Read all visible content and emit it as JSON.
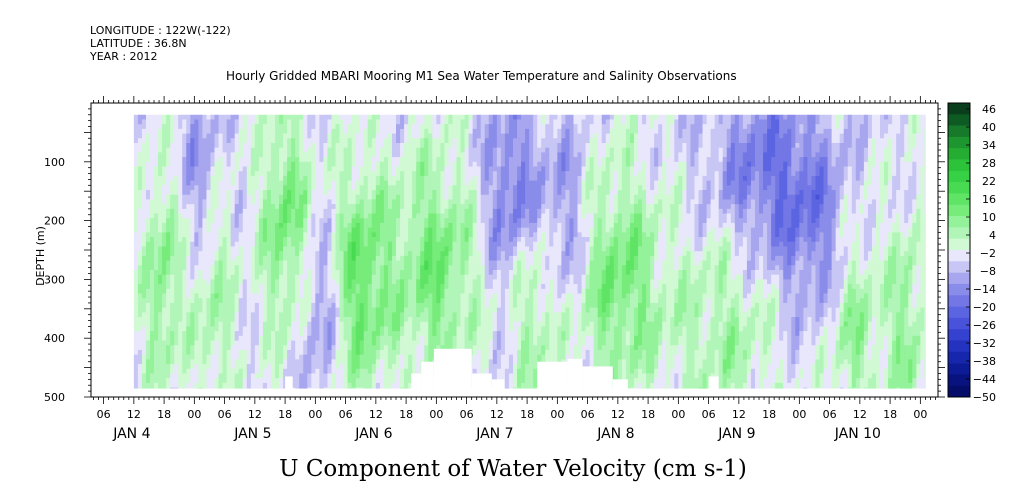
{
  "header": {
    "longitude": "LONGITUDE : 122W(-122)",
    "latitude": "LATITUDE : 36.8N",
    "year": "YEAR : 2012",
    "title": "Hourly Gridded MBARI Mooring M1 Sea Water Temperature and Salinity Observations"
  },
  "chart_data": {
    "type": "heatmap",
    "title": "Hourly Gridded MBARI Mooring M1 Sea Water Temperature and Salinity Observations",
    "xlabel": "U Component of Water Velocity (cm s-1)",
    "ylabel": "DEPTH (m)",
    "x_time_ticks": [
      "06",
      "12",
      "18",
      "00",
      "06",
      "12",
      "18",
      "00",
      "06",
      "12",
      "18",
      "00",
      "06",
      "12",
      "18",
      "00",
      "06",
      "12",
      "18",
      "00",
      "06",
      "12",
      "18",
      "00",
      "06",
      "12",
      "18",
      "00"
    ],
    "x_day_labels": [
      "JAN 4",
      "JAN 5",
      "JAN 6",
      "JAN 7",
      "JAN 8",
      "JAN 9",
      "JAN 10"
    ],
    "x_range_hours_from_jan4_00": [
      3.5,
      171.5
    ],
    "data_start_hour": 12,
    "data_end_hour": 169,
    "y_ticks": [
      100,
      200,
      300,
      400,
      500
    ],
    "y_tick_labels": [
      "100",
      "200",
      "300",
      "400",
      "500"
    ],
    "ylim": [
      500,
      0
    ],
    "depth_range_data": [
      20,
      485
    ],
    "colorbar_levels": [
      48,
      46,
      43,
      40,
      37,
      34,
      31,
      28,
      25,
      22,
      19,
      16,
      13,
      10,
      7,
      4,
      1,
      -2,
      -5,
      -8,
      -11,
      -14,
      -17,
      -20,
      -23,
      -26,
      -29,
      -32,
      -35,
      -38,
      -41,
      -44,
      -47,
      -50
    ],
    "colorbar_labels": [
      "46",
      "40",
      "34",
      "28",
      "22",
      "16",
      "10",
      "4",
      "-2",
      "-8",
      "-14",
      "-20",
      "-26",
      "-32",
      "-38",
      "-44",
      "-50"
    ],
    "colorbar_colors": [
      "#0a3d1c",
      "#0e5a23",
      "#167a2a",
      "#1e962f",
      "#25ad33",
      "#2cc23a",
      "#36d144",
      "#48db52",
      "#5fe465",
      "#77ec7b",
      "#93f29a",
      "#b1f6b8",
      "#d1f9d3",
      "#e9e7fb",
      "#c8c6f4",
      "#a7a6ee",
      "#8a8cea",
      "#7277e5",
      "#5c65e1",
      "#4852da",
      "#3541cf",
      "#2432c0",
      "#1626ad",
      "#0d1b96",
      "#08137f",
      "#050d68"
    ],
    "regions": {
      "negative_speckle_color": "#a5a6ee",
      "positive_bands": [
        {
          "start_hour": 15,
          "end_hour": 20,
          "center_depth": 300,
          "value": 14
        },
        {
          "start_hour": 24,
          "end_hour": 31,
          "center_depth": 350,
          "value": 10
        },
        {
          "start_hour": 38,
          "end_hour": 46,
          "center_depth": 200,
          "value": 16
        },
        {
          "start_hour": 52,
          "end_hour": 62,
          "center_depth": 300,
          "value": 18
        },
        {
          "start_hour": 64,
          "end_hour": 80,
          "center_depth": 280,
          "value": 16
        },
        {
          "start_hour": 88,
          "end_hour": 95,
          "center_depth": 330,
          "value": 12
        },
        {
          "start_hour": 100,
          "end_hour": 116,
          "center_depth": 300,
          "value": 16
        },
        {
          "start_hour": 118,
          "end_hour": 140,
          "center_depth": 380,
          "value": 10
        },
        {
          "start_hour": 150,
          "end_hour": 160,
          "center_depth": 350,
          "value": 14
        },
        {
          "start_hour": 163,
          "end_hour": 168,
          "center_depth": 380,
          "value": 12
        }
      ],
      "negative_bands": [
        {
          "start_hour": 22,
          "end_hour": 28,
          "center_depth": 120,
          "value": -8
        },
        {
          "start_hour": 46,
          "end_hour": 52,
          "center_depth": 350,
          "value": -10
        },
        {
          "start_hour": 82,
          "end_hour": 92,
          "center_depth": 150,
          "value": -14
        },
        {
          "start_hour": 92,
          "end_hour": 102,
          "center_depth": 200,
          "value": -10
        },
        {
          "start_hour": 126,
          "end_hour": 150,
          "center_depth": 120,
          "value": -14
        },
        {
          "start_hour": 140,
          "end_hour": 158,
          "center_depth": 250,
          "value": -10
        }
      ]
    },
    "missing_data_steps": [
      {
        "start_hour": 42,
        "end_hour": 43.5,
        "depth_top": 465
      },
      {
        "start_hour": 67,
        "end_hour": 69,
        "depth_top": 460
      },
      {
        "start_hour": 69,
        "end_hour": 71.5,
        "depth_top": 440
      },
      {
        "start_hour": 71.5,
        "end_hour": 79,
        "depth_top": 418
      },
      {
        "start_hour": 79,
        "end_hour": 83,
        "depth_top": 460
      },
      {
        "start_hour": 83,
        "end_hour": 85.5,
        "depth_top": 470
      },
      {
        "start_hour": 92,
        "end_hour": 98,
        "depth_top": 440
      },
      {
        "start_hour": 98,
        "end_hour": 101,
        "depth_top": 435
      },
      {
        "start_hour": 101,
        "end_hour": 107,
        "depth_top": 448
      },
      {
        "start_hour": 107,
        "end_hour": 110,
        "depth_top": 470
      },
      {
        "start_hour": 126,
        "end_hour": 128,
        "depth_top": 465
      }
    ]
  }
}
